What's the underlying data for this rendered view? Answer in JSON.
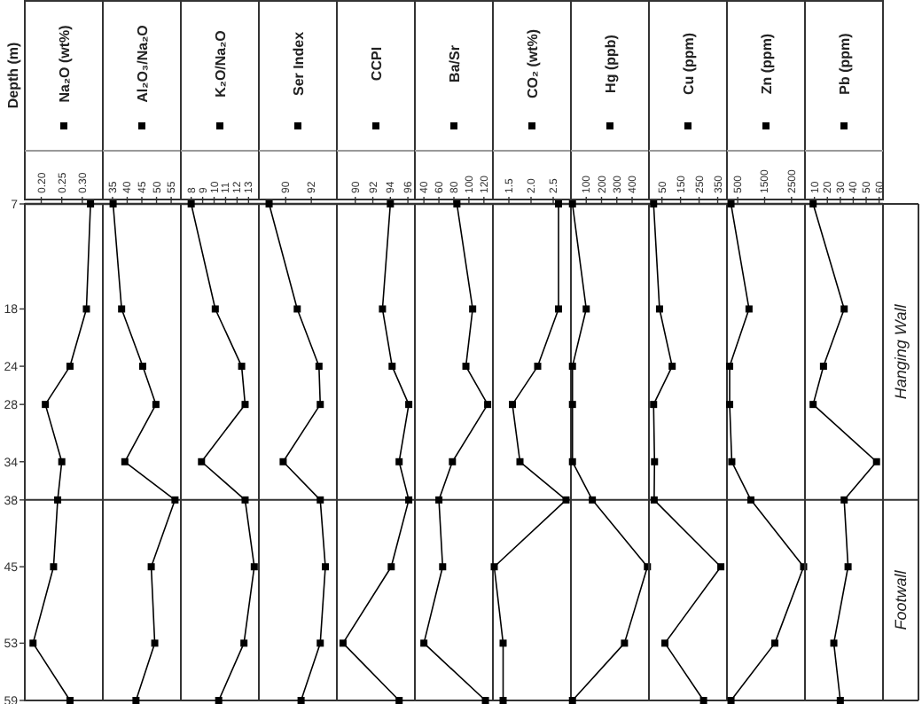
{
  "chart_data": [
    {
      "type": "line",
      "ylabel": "Depth (m)",
      "legend": "top",
      "marker": "square",
      "line_style": "solid",
      "xlim": [
        0.16,
        0.35
      ],
      "xticks": [
        {
          "value": 0.2,
          "label": "0.20"
        },
        {
          "value": 0.25,
          "label": "0.25"
        },
        {
          "value": 0.3,
          "label": "0.30"
        }
      ],
      "ylim": [
        59,
        7
      ],
      "yticks": [
        7,
        18,
        24,
        28,
        34,
        38,
        45,
        53,
        59
      ],
      "ref_lines": [
        {
          "axis": "y",
          "value": 38
        }
      ],
      "series": [
        {
          "name": "Na₂O (wt%)",
          "color": "#000000",
          "x": [
            0.32,
            0.31,
            0.27,
            0.21,
            0.25,
            0.24,
            0.23,
            0.18,
            0.27
          ],
          "values": [
            7,
            18,
            24,
            28,
            34,
            38,
            45,
            53,
            59
          ]
        }
      ]
    },
    {
      "type": "line",
      "legend": "top",
      "marker": "square",
      "line_style": "solid",
      "tick_labels": "x",
      "xlim": [
        31.7,
        58.3
      ],
      "xticks": [
        35,
        40,
        45,
        50,
        55
      ],
      "ylim": [
        59,
        7
      ],
      "yticks": [
        7,
        18,
        24,
        28,
        34,
        38,
        45,
        53,
        59
      ],
      "ref_lines": [
        {
          "axis": "y",
          "value": 38
        }
      ],
      "series": [
        {
          "name": "Al₂O₃/Na₂O",
          "color": "#000000",
          "x": [
            35.2,
            38.1,
            45.3,
            49.8,
            39.2,
            56.3,
            48.2,
            49.4,
            43.0
          ],
          "values": [
            7,
            18,
            24,
            28,
            34,
            38,
            45,
            53,
            59
          ]
        }
      ]
    },
    {
      "type": "line",
      "legend": "top",
      "marker": "square",
      "line_style": "solid",
      "tick_labels": "x",
      "xlim": [
        7.1,
        13.9
      ],
      "xticks": [
        8,
        9,
        10,
        11,
        12,
        13
      ],
      "ylim": [
        59,
        7
      ],
      "yticks": [
        7,
        18,
        24,
        28,
        34,
        38,
        45,
        53,
        59
      ],
      "ref_lines": [
        {
          "axis": "y",
          "value": 38
        }
      ],
      "series": [
        {
          "name": "K₂O/Na₂O",
          "color": "#000000",
          "x": [
            8.0,
            10.1,
            12.4,
            12.7,
            8.9,
            12.7,
            13.5,
            12.6,
            10.4
          ],
          "values": [
            7,
            18,
            24,
            28,
            34,
            38,
            45,
            53,
            59
          ]
        }
      ]
    },
    {
      "type": "line",
      "legend": "top",
      "marker": "square",
      "line_style": "solid",
      "tick_labels": "x",
      "xlim": [
        87.9,
        94.0
      ],
      "xticks": [
        90,
        92
      ],
      "ylim": [
        59,
        7
      ],
      "yticks": [
        7,
        18,
        24,
        28,
        34,
        38,
        45,
        53,
        59
      ],
      "ref_lines": [
        {
          "axis": "y",
          "value": 38
        }
      ],
      "series": [
        {
          "name": "Ser Index",
          "color": "#000000",
          "x": [
            88.7,
            90.9,
            92.6,
            92.7,
            89.8,
            92.7,
            93.1,
            92.7,
            91.2
          ],
          "values": [
            7,
            18,
            24,
            28,
            34,
            38,
            45,
            53,
            59
          ]
        }
      ]
    },
    {
      "type": "line",
      "legend": "top",
      "marker": "square",
      "line_style": "solid",
      "tick_labels": "x",
      "xlim": [
        87.9,
        96.8
      ],
      "xticks": [
        90,
        92,
        94,
        96
      ],
      "ylim": [
        59,
        7
      ],
      "yticks": [
        7,
        18,
        24,
        28,
        34,
        38,
        45,
        53,
        59
      ],
      "ref_lines": [
        {
          "axis": "y",
          "value": 38
        }
      ],
      "series": [
        {
          "name": "CCPI",
          "color": "#000000",
          "x": [
            94.0,
            93.1,
            94.2,
            96.1,
            95.0,
            96.1,
            94.1,
            88.6,
            95.0
          ],
          "values": [
            7,
            18,
            24,
            28,
            34,
            38,
            45,
            53,
            59
          ]
        }
      ]
    },
    {
      "type": "line",
      "legend": "top",
      "marker": "square",
      "line_style": "solid",
      "tick_labels": "x",
      "xlim": [
        28,
        132
      ],
      "xticks": [
        40,
        60,
        80,
        100,
        120
      ],
      "ylim": [
        59,
        7
      ],
      "yticks": [
        7,
        18,
        24,
        28,
        34,
        38,
        45,
        53,
        59
      ],
      "ref_lines": [
        {
          "axis": "y",
          "value": 38
        }
      ],
      "series": [
        {
          "name": "Ba/Sr",
          "color": "#000000",
          "x": [
            84,
            105,
            96,
            125,
            78,
            60,
            65,
            40,
            122
          ],
          "values": [
            7,
            18,
            24,
            28,
            34,
            38,
            45,
            53,
            59
          ]
        }
      ]
    },
    {
      "type": "line",
      "legend": "top",
      "marker": "square",
      "line_style": "solid",
      "tick_labels": "x",
      "xlim": [
        1.14,
        2.9
      ],
      "xticks": [
        1.5,
        {
          "value": 2,
          "label": "2.0"
        },
        2.5
      ],
      "ylim": [
        59,
        7
      ],
      "yticks": [
        7,
        18,
        24,
        28,
        34,
        38,
        45,
        53,
        59
      ],
      "ref_lines": [
        {
          "axis": "y",
          "value": 38
        }
      ],
      "series": [
        {
          "name": "CO₂ (wt%)",
          "color": "#000000",
          "x": [
            2.62,
            2.62,
            2.15,
            1.58,
            1.75,
            2.79,
            1.17,
            1.37,
            1.37
          ],
          "values": [
            7,
            18,
            24,
            28,
            34,
            38,
            45,
            53,
            59
          ]
        }
      ]
    },
    {
      "type": "line",
      "legend": "top",
      "marker": "square",
      "line_style": "solid",
      "tick_labels": "x",
      "xlim": [
        0,
        510
      ],
      "xticks": [
        100,
        200,
        300,
        400
      ],
      "ylim": [
        59,
        7
      ],
      "yticks": [
        7,
        18,
        24,
        28,
        34,
        38,
        45,
        53,
        59
      ],
      "ref_lines": [
        {
          "axis": "y",
          "value": 38
        }
      ],
      "series": [
        {
          "name": "Hg (ppb)",
          "color": "#000000",
          "x": [
            10,
            100,
            10,
            10,
            10,
            140,
            500,
            350,
            10
          ],
          "values": [
            7,
            18,
            24,
            28,
            34,
            38,
            45,
            53,
            59
          ]
        }
      ]
    },
    {
      "type": "line",
      "legend": "top",
      "marker": "square",
      "line_style": "solid",
      "tick_labels": "x",
      "xlim": [
        -20,
        400
      ],
      "xticks": [
        50,
        150,
        250,
        350
      ],
      "ylim": [
        59,
        7
      ],
      "yticks": [
        7,
        18,
        24,
        28,
        34,
        38,
        45,
        53,
        59
      ],
      "ref_lines": [
        {
          "axis": "y",
          "value": 38
        }
      ],
      "series": [
        {
          "name": "Cu (ppm)",
          "color": "#000000",
          "x": [
            5,
            37,
            105,
            5,
            10,
            8,
            367,
            66,
            274
          ],
          "values": [
            7,
            18,
            24,
            28,
            34,
            38,
            45,
            53,
            59
          ]
        }
      ]
    },
    {
      "type": "line",
      "legend": "top",
      "marker": "square",
      "line_style": "solid",
      "tick_labels": "x",
      "xlim": [
        100,
        3000
      ],
      "xticks": [
        500,
        1500,
        2500
      ],
      "ylim": [
        59,
        7
      ],
      "yticks": [
        7,
        18,
        24,
        28,
        34,
        38,
        45,
        53,
        59
      ],
      "ref_lines": [
        {
          "axis": "y",
          "value": 38
        }
      ],
      "series": [
        {
          "name": "Zn (ppm)",
          "color": "#000000",
          "x": [
            250,
            920,
            200,
            200,
            280,
            990,
            2950,
            1880,
            250
          ],
          "values": [
            7,
            18,
            24,
            28,
            34,
            38,
            45,
            53,
            59
          ]
        }
      ]
    },
    {
      "type": "line",
      "legend": "top",
      "marker": "square",
      "line_style": "solid",
      "tick_labels": "x",
      "xlim": [
        2.7,
        63
      ],
      "xticks": [
        10,
        20,
        30,
        40,
        50,
        60
      ],
      "ylim": [
        59,
        7
      ],
      "yticks": [
        7,
        18,
        24,
        28,
        34,
        38,
        45,
        53,
        59
      ],
      "ref_lines": [
        {
          "axis": "y",
          "value": 38
        }
      ],
      "annotations": [
        "Hanging Wall",
        "Footwall"
      ],
      "series": [
        {
          "name": "Pb (ppm)",
          "color": "#000000",
          "x": [
            9,
            33,
            17,
            9,
            58,
            33,
            36,
            25,
            30
          ],
          "values": [
            7,
            18,
            24,
            28,
            34,
            38,
            45,
            53,
            59
          ]
        }
      ]
    }
  ]
}
